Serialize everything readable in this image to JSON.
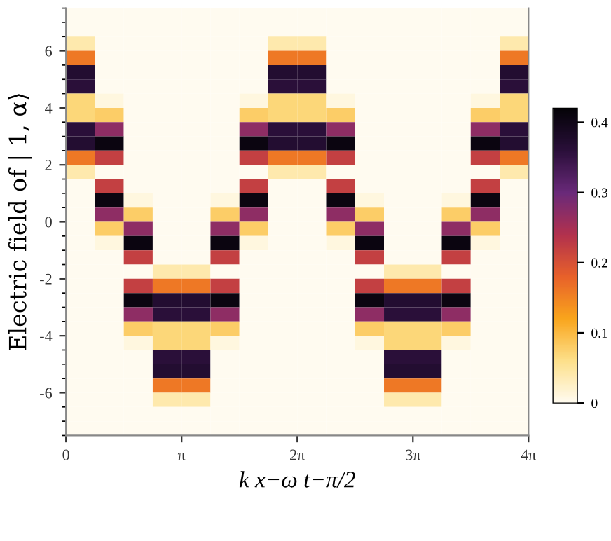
{
  "chart_data": {
    "type": "heatmap",
    "xlabel": "k x−ω t−π/2",
    "ylabel": "Electric field of | 1, α⟩",
    "x": [
      0.393,
      1.178,
      1.963,
      2.749,
      3.534,
      4.32,
      5.105,
      5.89,
      6.676,
      7.461,
      8.247,
      9.032,
      9.817,
      10.603,
      11.388,
      12.174
    ],
    "y": [
      7.25,
      6.75,
      6.25,
      5.75,
      5.25,
      4.75,
      4.25,
      3.75,
      3.25,
      2.75,
      2.25,
      1.75,
      1.25,
      0.75,
      0.25,
      -0.25,
      -0.75,
      -1.25,
      -1.75,
      -2.25,
      -2.75,
      -3.25,
      -3.75,
      -4.25,
      -4.75,
      -5.25,
      -5.75,
      -6.25,
      -6.75,
      -7.25
    ],
    "cells": [
      [
        0,
        0,
        0,
        0,
        0,
        0,
        0,
        0,
        0,
        0,
        0,
        0,
        0,
        0,
        0,
        0
      ],
      [
        0,
        0,
        0,
        0,
        0,
        0,
        0,
        0,
        0,
        0,
        0,
        0,
        0,
        0,
        0,
        0
      ],
      [
        0.04,
        0,
        0,
        0,
        0,
        0,
        0,
        0.04,
        0.04,
        0,
        0,
        0,
        0,
        0,
        0,
        0.04
      ],
      [
        0.16,
        0,
        0,
        0,
        0,
        0,
        0,
        0.16,
        0.16,
        0,
        0,
        0,
        0,
        0,
        0,
        0.16
      ],
      [
        0.37,
        0,
        0,
        0,
        0,
        0,
        0,
        0.37,
        0.37,
        0,
        0,
        0,
        0,
        0,
        0,
        0.37
      ],
      [
        0.36,
        0,
        0,
        0,
        0,
        0,
        0,
        0.36,
        0.36,
        0,
        0,
        0,
        0,
        0,
        0,
        0.36
      ],
      [
        0.07,
        0.01,
        0,
        0,
        0,
        0,
        0.01,
        0.07,
        0.07,
        0.01,
        0,
        0,
        0,
        0,
        0.01,
        0.07
      ],
      [
        0.07,
        0.08,
        0,
        0,
        0,
        0,
        0.08,
        0.07,
        0.07,
        0.08,
        0,
        0,
        0,
        0,
        0.08,
        0.07
      ],
      [
        0.36,
        0.27,
        0,
        0,
        0,
        0,
        0.27,
        0.36,
        0.36,
        0.27,
        0,
        0,
        0,
        0,
        0.27,
        0.36
      ],
      [
        0.37,
        0.41,
        0,
        0,
        0,
        0,
        0.41,
        0.37,
        0.37,
        0.41,
        0,
        0,
        0,
        0,
        0.41,
        0.37
      ],
      [
        0.16,
        0.22,
        0,
        0,
        0,
        0,
        0.22,
        0.16,
        0.16,
        0.22,
        0,
        0,
        0,
        0,
        0.22,
        0.16
      ],
      [
        0.04,
        0,
        0,
        0,
        0,
        0,
        0,
        0.04,
        0.04,
        0,
        0,
        0,
        0,
        0,
        0,
        0.04
      ],
      [
        0,
        0.22,
        0,
        0,
        0,
        0,
        0.22,
        0,
        0,
        0.22,
        0,
        0,
        0,
        0,
        0.22,
        0
      ],
      [
        0,
        0.41,
        0.01,
        0,
        0,
        0.01,
        0.41,
        0,
        0,
        0.41,
        0.01,
        0,
        0,
        0.01,
        0.41,
        0
      ],
      [
        0,
        0.27,
        0.08,
        0,
        0,
        0.08,
        0.27,
        0,
        0,
        0.27,
        0.08,
        0,
        0,
        0.08,
        0.27,
        0
      ],
      [
        0,
        0.08,
        0.27,
        0,
        0,
        0.27,
        0.08,
        0,
        0,
        0.08,
        0.27,
        0,
        0,
        0.27,
        0.08,
        0
      ],
      [
        0,
        0.01,
        0.41,
        0,
        0,
        0.41,
        0.01,
        0,
        0,
        0.01,
        0.41,
        0,
        0,
        0.41,
        0.01,
        0
      ],
      [
        0,
        0,
        0.22,
        0,
        0,
        0.22,
        0,
        0,
        0,
        0,
        0.22,
        0,
        0,
        0.22,
        0,
        0
      ],
      [
        0,
        0,
        0,
        0.04,
        0.04,
        0,
        0,
        0,
        0,
        0,
        0,
        0.04,
        0.04,
        0,
        0,
        0
      ],
      [
        0,
        0,
        0.22,
        0.16,
        0.16,
        0.22,
        0,
        0,
        0,
        0,
        0.22,
        0.16,
        0.16,
        0.22,
        0,
        0
      ],
      [
        0,
        0,
        0.41,
        0.37,
        0.37,
        0.41,
        0,
        0,
        0,
        0,
        0.41,
        0.37,
        0.37,
        0.41,
        0,
        0
      ],
      [
        0,
        0,
        0.27,
        0.36,
        0.36,
        0.27,
        0,
        0,
        0,
        0,
        0.27,
        0.36,
        0.36,
        0.27,
        0,
        0
      ],
      [
        0,
        0,
        0.08,
        0.07,
        0.07,
        0.08,
        0,
        0,
        0,
        0,
        0.08,
        0.07,
        0.07,
        0.08,
        0,
        0
      ],
      [
        0,
        0,
        0.01,
        0.07,
        0.07,
        0.01,
        0,
        0,
        0,
        0,
        0.01,
        0.07,
        0.07,
        0.01,
        0,
        0
      ],
      [
        0,
        0,
        0,
        0.36,
        0.36,
        0,
        0,
        0,
        0,
        0,
        0,
        0.36,
        0.36,
        0,
        0,
        0
      ],
      [
        0,
        0,
        0,
        0.37,
        0.37,
        0,
        0,
        0,
        0,
        0,
        0,
        0.37,
        0.37,
        0,
        0,
        0
      ],
      [
        0,
        0,
        0,
        0.16,
        0.16,
        0,
        0,
        0,
        0,
        0,
        0,
        0.16,
        0.16,
        0,
        0,
        0
      ],
      [
        0,
        0,
        0,
        0.04,
        0.04,
        0,
        0,
        0,
        0,
        0,
        0,
        0.04,
        0.04,
        0,
        0,
        0
      ],
      [
        0,
        0,
        0,
        0,
        0,
        0,
        0,
        0,
        0,
        0,
        0,
        0,
        0,
        0,
        0,
        0
      ],
      [
        0,
        0,
        0,
        0,
        0,
        0,
        0,
        0,
        0,
        0,
        0,
        0,
        0,
        0,
        0,
        0
      ]
    ],
    "colors": [
      "#fffbf0",
      "#fde08a",
      "#f9a51c",
      "#e8612a",
      "#b2314e",
      "#6a2a7a",
      "#2a0f3a",
      "#050308"
    ],
    "clim": [
      0,
      0.42
    ],
    "cticks": [
      0,
      0.1,
      0.2,
      0.3,
      0.4
    ],
    "xlim": [
      0,
      12.566
    ],
    "xticks": [
      0,
      {
        "value": 3.142,
        "label": "π"
      },
      {
        "value": 6.283,
        "label": "2π"
      },
      {
        "value": 9.425,
        "label": "3π"
      },
      {
        "value": 12.566,
        "label": "4π"
      }
    ],
    "ylim": [
      -7.5,
      7.5
    ],
    "yticks": [
      -6,
      -4,
      -2,
      0,
      2,
      4,
      6
    ],
    "grid": false
  }
}
